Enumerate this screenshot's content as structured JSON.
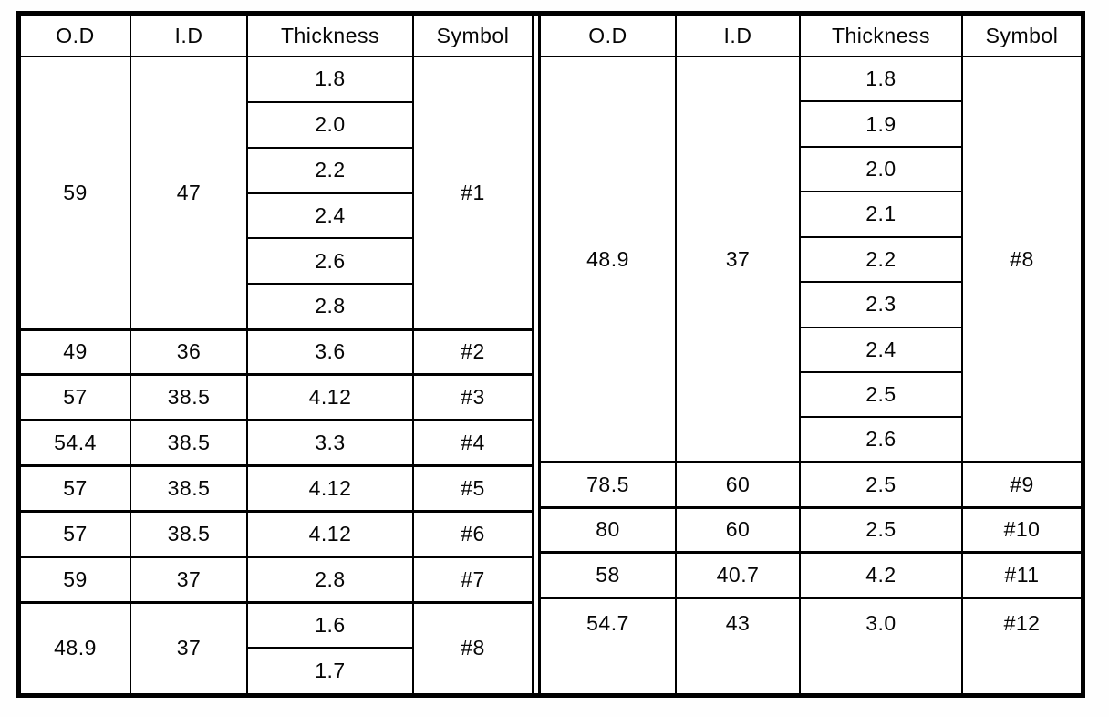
{
  "document": {
    "kind": "scanned-dimension-table",
    "border_color": "#000000",
    "background_color": "#ffffff"
  },
  "tables": [
    {
      "name": "left",
      "headers": [
        "O.D",
        "I.D",
        "Thickness",
        "Symbol"
      ],
      "groups": [
        {
          "od": "59",
          "id": "47",
          "thickness": [
            "1.8",
            "2.0",
            "2.2",
            "2.4",
            "2.6",
            "2.8"
          ],
          "symbol": "#1"
        },
        {
          "od": "49",
          "id": "36",
          "thickness": [
            "3.6"
          ],
          "symbol": "#2"
        },
        {
          "od": "57",
          "id": "38.5",
          "thickness": [
            "4.12"
          ],
          "symbol": "#3"
        },
        {
          "od": "54.4",
          "id": "38.5",
          "thickness": [
            "3.3"
          ],
          "symbol": "#4"
        },
        {
          "od": "57",
          "id": "38.5",
          "thickness": [
            "4.12"
          ],
          "symbol": "#5"
        },
        {
          "od": "57",
          "id": "38.5",
          "thickness": [
            "4.12"
          ],
          "symbol": "#6"
        },
        {
          "od": "59",
          "id": "37",
          "thickness": [
            "2.8"
          ],
          "symbol": "#7"
        },
        {
          "od": "48.9",
          "id": "37",
          "thickness": [
            "1.6",
            "1.7"
          ],
          "symbol": "#8"
        }
      ]
    },
    {
      "name": "right",
      "headers": [
        "O.D",
        "I.D",
        "Thickness",
        "Symbol"
      ],
      "groups": [
        {
          "od": "48.9",
          "id": "37",
          "thickness": [
            "1.8",
            "1.9",
            "2.0",
            "2.1",
            "2.2",
            "2.3",
            "2.4",
            "2.5",
            "2.6"
          ],
          "symbol": "#8"
        },
        {
          "od": "78.5",
          "id": "60",
          "thickness": [
            "2.5"
          ],
          "symbol": "#9"
        },
        {
          "od": "80",
          "id": "60",
          "thickness": [
            "2.5"
          ],
          "symbol": "#10"
        },
        {
          "od": "58",
          "id": "40.7",
          "thickness": [
            "4.2"
          ],
          "symbol": "#11"
        },
        {
          "od": "54.7",
          "id": "43",
          "thickness": [
            "3.0"
          ],
          "symbol": "#12"
        }
      ]
    }
  ]
}
